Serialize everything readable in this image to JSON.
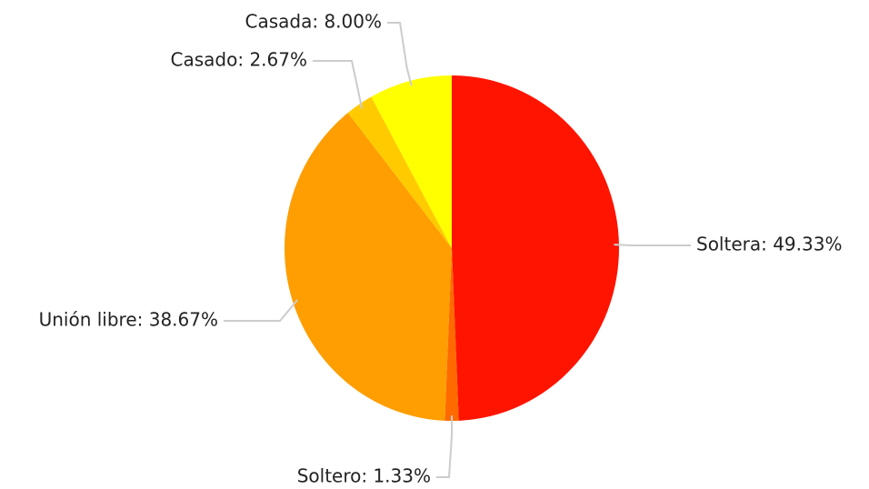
{
  "chart_data": {
    "type": "pie",
    "labels": [
      "Soltera: 49.33%",
      "Soltero: 1.33%",
      "Unión libre: 38.67%",
      "Casado: 2.67%",
      "Casada: 8.00%"
    ],
    "values": [
      49.33,
      1.33,
      38.67,
      2.67,
      8.0
    ],
    "colors": [
      "#ff1400",
      "#ff6a00",
      "#ff9e00",
      "#ffcb00",
      "#ffff00"
    ]
  }
}
